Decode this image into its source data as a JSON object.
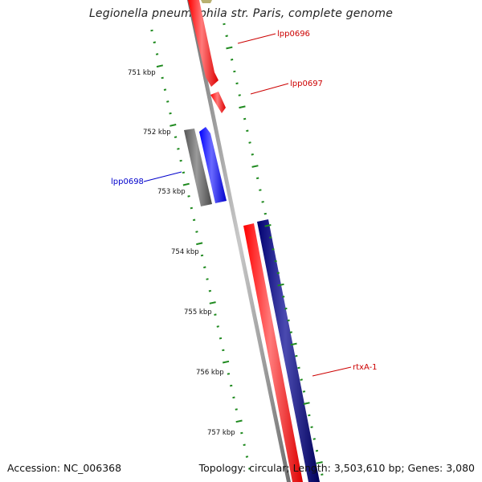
{
  "title": "Legionella pneumophila str. Paris, complete genome",
  "footer": {
    "accession": "Accession: NC_006368",
    "summary": "Topology: circular; Length: 3,503,610 bp; Genes: 3,080"
  },
  "colors": {
    "backbone": "#8a8a8a",
    "tick": "#1f8a1f",
    "forward_gene": "#ff0000",
    "reverse_gene": "#0000ee",
    "dark_gene": "#000080",
    "grey_gene": "#666666",
    "label_red": "#cc0000",
    "label_blue": "#0000cc",
    "olive_gene": "#b8b070"
  },
  "scale_labels": [
    "751 kbp",
    "752 kbp",
    "753 kbp",
    "754 kbp",
    "755 kbp",
    "756 kbp",
    "757 kbp"
  ],
  "gene_labels": [
    {
      "text": "lpp0696",
      "color": "#cc0000"
    },
    {
      "text": "lpp0697",
      "color": "#cc0000"
    },
    {
      "text": "lpp0698",
      "color": "#0000cc"
    },
    {
      "text": "rtxA-1",
      "color": "#cc0000"
    }
  ]
}
